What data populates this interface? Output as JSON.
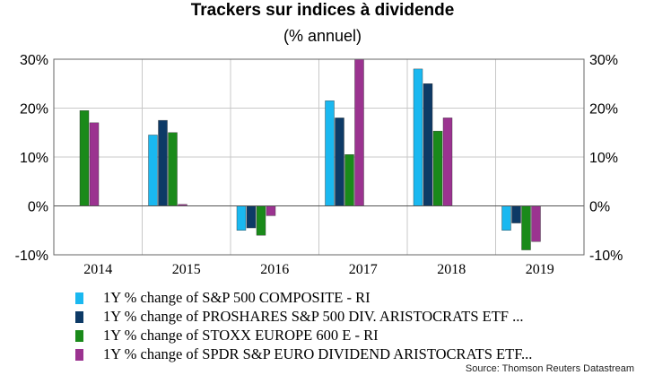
{
  "chart_data": {
    "type": "bar",
    "title": "Trackers sur indices à dividende",
    "subtitle": "(% annuel)",
    "categories": [
      "2014",
      "2015",
      "2016",
      "2017",
      "2018",
      "2019"
    ],
    "ylim": [
      -10,
      30
    ],
    "yticks": [
      -10,
      0,
      10,
      20,
      30
    ],
    "ytick_labels": [
      "-10%",
      "0%",
      "10%",
      "20%",
      "30%"
    ],
    "grid": true,
    "legend_position": "bottom",
    "series": [
      {
        "name": "1Y % change of S&P 500 COMPOSITE - RI",
        "color": "#1ab8f0",
        "values": [
          null,
          14.5,
          -5,
          21.5,
          28,
          -5
        ]
      },
      {
        "name": "1Y % change of PROSHARES S&P 500 DIV. ARISTOCRATS ETF ...",
        "color": "#0d3a66",
        "values": [
          null,
          17.5,
          -4.5,
          18,
          25,
          -3.5
        ]
      },
      {
        "name": "1Y % change of STOXX EUROPE 600 E - RI",
        "color": "#1a8a1a",
        "values": [
          19.5,
          15,
          -6,
          10.5,
          15.3,
          -9
        ]
      },
      {
        "name": "1Y % change of SPDR S&P EURO DIVIDEND ARISTOCRATS ETF...",
        "color": "#9b3390",
        "values": [
          17,
          0.3,
          -2,
          30,
          18,
          -7.3
        ]
      }
    ],
    "source": "Source: Thomson Reuters Datastream"
  }
}
